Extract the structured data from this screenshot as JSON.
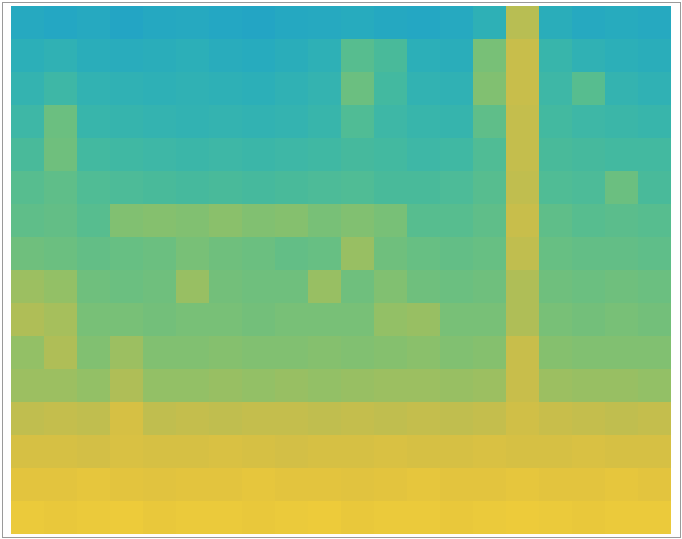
{
  "chart_data": {
    "type": "heatmap",
    "tick_labels": false,
    "zlim": [
      0,
      1
    ],
    "cells": [
      [
        0.3,
        0.28,
        0.3,
        0.27,
        0.29,
        0.3,
        0.28,
        0.27,
        0.29,
        0.3,
        0.31,
        0.29,
        0.28,
        0.3,
        0.35,
        0.72,
        0.33,
        0.3,
        0.31,
        0.3
      ],
      [
        0.34,
        0.36,
        0.33,
        0.32,
        0.33,
        0.34,
        0.32,
        0.31,
        0.33,
        0.35,
        0.5,
        0.46,
        0.34,
        0.33,
        0.58,
        0.76,
        0.4,
        0.36,
        0.34,
        0.33
      ],
      [
        0.38,
        0.42,
        0.37,
        0.36,
        0.35,
        0.36,
        0.35,
        0.34,
        0.36,
        0.38,
        0.55,
        0.44,
        0.37,
        0.36,
        0.6,
        0.76,
        0.42,
        0.5,
        0.38,
        0.36
      ],
      [
        0.42,
        0.55,
        0.4,
        0.39,
        0.38,
        0.37,
        0.38,
        0.37,
        0.38,
        0.4,
        0.48,
        0.42,
        0.4,
        0.39,
        0.52,
        0.75,
        0.44,
        0.42,
        0.41,
        0.4
      ],
      [
        0.46,
        0.56,
        0.44,
        0.43,
        0.42,
        0.41,
        0.42,
        0.41,
        0.42,
        0.43,
        0.45,
        0.44,
        0.42,
        0.43,
        0.48,
        0.75,
        0.46,
        0.45,
        0.44,
        0.44
      ],
      [
        0.5,
        0.52,
        0.48,
        0.47,
        0.46,
        0.45,
        0.46,
        0.45,
        0.46,
        0.47,
        0.48,
        0.46,
        0.46,
        0.47,
        0.5,
        0.74,
        0.48,
        0.47,
        0.55,
        0.46
      ],
      [
        0.52,
        0.53,
        0.5,
        0.6,
        0.61,
        0.6,
        0.62,
        0.6,
        0.61,
        0.58,
        0.6,
        0.58,
        0.5,
        0.5,
        0.52,
        0.76,
        0.52,
        0.5,
        0.51,
        0.5
      ],
      [
        0.56,
        0.55,
        0.53,
        0.54,
        0.55,
        0.58,
        0.56,
        0.55,
        0.53,
        0.54,
        0.65,
        0.56,
        0.54,
        0.53,
        0.54,
        0.74,
        0.54,
        0.53,
        0.53,
        0.52
      ],
      [
        0.66,
        0.64,
        0.56,
        0.55,
        0.56,
        0.65,
        0.57,
        0.56,
        0.56,
        0.65,
        0.56,
        0.6,
        0.56,
        0.55,
        0.56,
        0.7,
        0.56,
        0.55,
        0.56,
        0.55
      ],
      [
        0.7,
        0.68,
        0.58,
        0.58,
        0.57,
        0.58,
        0.58,
        0.57,
        0.58,
        0.58,
        0.58,
        0.64,
        0.65,
        0.58,
        0.58,
        0.7,
        0.58,
        0.57,
        0.58,
        0.57
      ],
      [
        0.64,
        0.7,
        0.6,
        0.66,
        0.6,
        0.6,
        0.61,
        0.6,
        0.6,
        0.61,
        0.6,
        0.61,
        0.62,
        0.6,
        0.61,
        0.76,
        0.61,
        0.6,
        0.6,
        0.6
      ],
      [
        0.66,
        0.66,
        0.64,
        0.7,
        0.64,
        0.64,
        0.65,
        0.64,
        0.65,
        0.64,
        0.65,
        0.66,
        0.66,
        0.65,
        0.66,
        0.76,
        0.66,
        0.65,
        0.65,
        0.64
      ],
      [
        0.74,
        0.75,
        0.74,
        0.8,
        0.74,
        0.75,
        0.74,
        0.75,
        0.75,
        0.74,
        0.75,
        0.74,
        0.75,
        0.74,
        0.75,
        0.78,
        0.76,
        0.75,
        0.74,
        0.75
      ],
      [
        0.8,
        0.8,
        0.79,
        0.81,
        0.8,
        0.8,
        0.81,
        0.8,
        0.79,
        0.8,
        0.8,
        0.81,
        0.8,
        0.8,
        0.81,
        0.8,
        0.8,
        0.81,
        0.8,
        0.8
      ],
      [
        0.85,
        0.85,
        0.86,
        0.85,
        0.84,
        0.85,
        0.85,
        0.86,
        0.85,
        0.85,
        0.84,
        0.85,
        0.86,
        0.85,
        0.85,
        0.86,
        0.85,
        0.85,
        0.86,
        0.85
      ],
      [
        0.89,
        0.88,
        0.89,
        0.9,
        0.88,
        0.89,
        0.89,
        0.88,
        0.89,
        0.9,
        0.88,
        0.89,
        0.89,
        0.88,
        0.89,
        0.9,
        0.89,
        0.88,
        0.89,
        0.89
      ]
    ]
  }
}
